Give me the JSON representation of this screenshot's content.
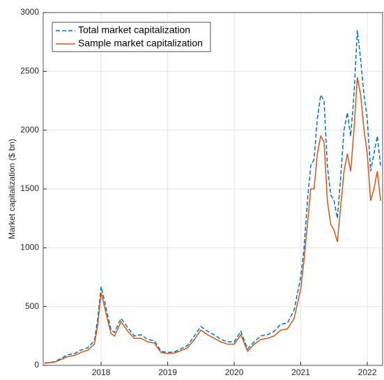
{
  "chart_data": {
    "type": "line",
    "ylabel": "Market capitalization ($ bn)",
    "x": [
      2017.15,
      2017.3,
      2017.4,
      2017.5,
      2017.6,
      2017.7,
      2017.8,
      2017.9,
      2017.95,
      2018.0,
      2018.05,
      2018.1,
      2018.15,
      2018.2,
      2018.3,
      2018.4,
      2018.5,
      2018.6,
      2018.7,
      2018.8,
      2018.9,
      2019.0,
      2019.1,
      2019.2,
      2019.3,
      2019.4,
      2019.5,
      2019.6,
      2019.7,
      2019.8,
      2019.9,
      2020.0,
      2020.1,
      2020.2,
      2020.3,
      2020.4,
      2020.5,
      2020.6,
      2020.7,
      2020.8,
      2020.9,
      2021.0,
      2021.05,
      2021.1,
      2021.15,
      2021.2,
      2021.25,
      2021.3,
      2021.35,
      2021.4,
      2021.45,
      2021.5,
      2021.55,
      2021.6,
      2021.65,
      2021.7,
      2021.75,
      2021.8,
      2021.85,
      2021.9,
      2021.95,
      2022.0,
      2022.05,
      2022.1,
      2022.15,
      2022.2
    ],
    "series": [
      {
        "name": "Total market capitalization",
        "color": "#0072bd",
        "dashed": true,
        "values": [
          20,
          30,
          60,
          90,
          100,
          130,
          150,
          210,
          400,
          670,
          550,
          420,
          300,
          280,
          400,
          320,
          250,
          260,
          220,
          210,
          120,
          110,
          115,
          140,
          170,
          250,
          330,
          290,
          260,
          220,
          200,
          200,
          290,
          140,
          200,
          250,
          260,
          290,
          350,
          360,
          470,
          750,
          1000,
          1400,
          1700,
          1750,
          2100,
          2300,
          2250,
          1700,
          1450,
          1400,
          1250,
          1600,
          2000,
          2150,
          1950,
          2300,
          2850,
          2600,
          2300,
          2100,
          1650,
          1800,
          1950,
          1700
        ]
      },
      {
        "name": "Sample market capitalization",
        "color": "#d95319",
        "dashed": false,
        "values": [
          18,
          27,
          50,
          75,
          85,
          110,
          130,
          180,
          350,
          620,
          500,
          380,
          270,
          250,
          370,
          290,
          230,
          230,
          200,
          190,
          110,
          100,
          105,
          125,
          150,
          220,
          300,
          260,
          230,
          200,
          180,
          180,
          260,
          120,
          180,
          220,
          230,
          250,
          300,
          310,
          400,
          650,
          900,
          1200,
          1500,
          1500,
          1800,
          1950,
          1900,
          1400,
          1200,
          1150,
          1050,
          1350,
          1650,
          1800,
          1650,
          2000,
          2450,
          2300,
          2000,
          1800,
          1400,
          1500,
          1650,
          1400
        ]
      }
    ],
    "xlim": [
      2017.13,
      2022.23
    ],
    "xticks": [
      2018,
      2019,
      2020,
      2021,
      2022
    ],
    "ylim": [
      0,
      3000
    ],
    "yticks": [
      0,
      500,
      1000,
      1500,
      2000,
      2500,
      3000
    ],
    "grid": true,
    "legend": "top-left"
  }
}
